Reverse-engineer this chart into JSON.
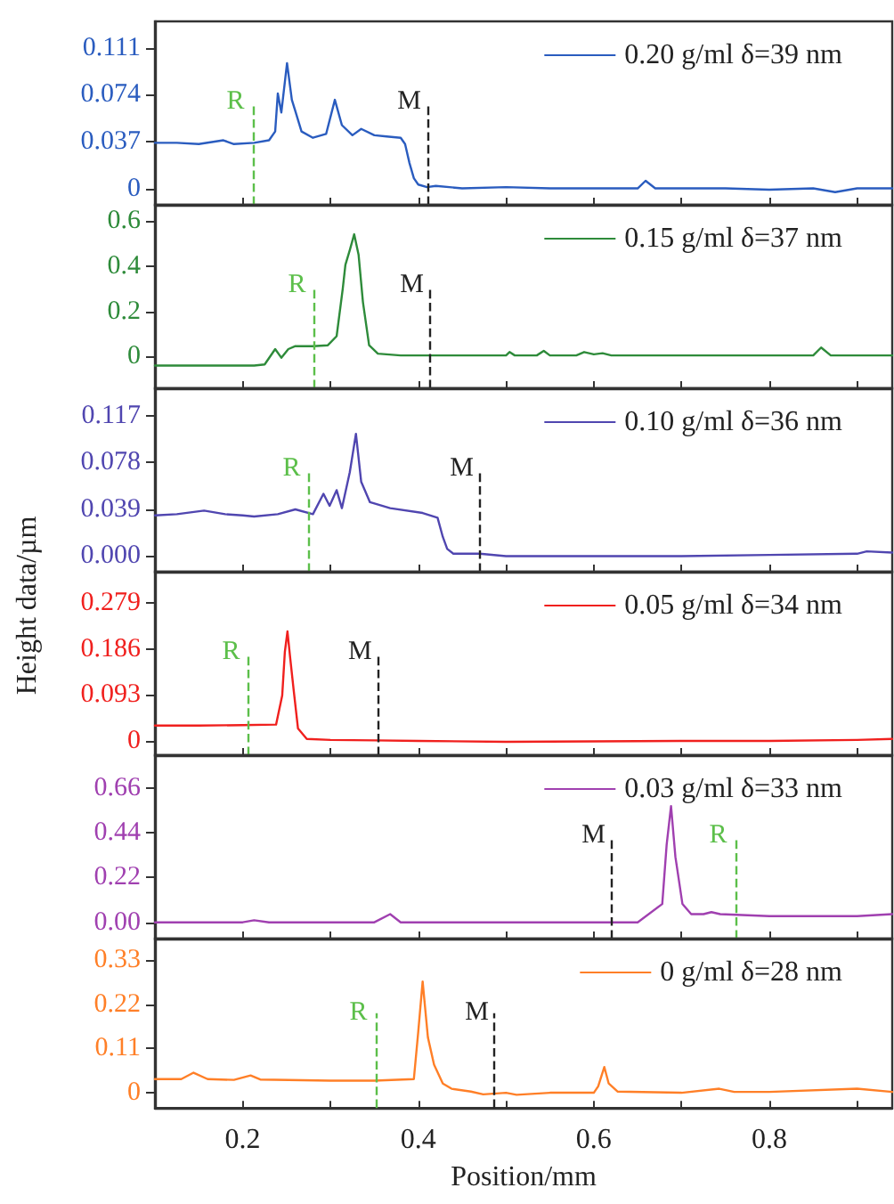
{
  "chart_data": [
    {
      "type": "line",
      "xlim": [
        0.1,
        0.94
      ],
      "xticks": [
        {
          "value": 0.2,
          "label": null
        },
        {
          "value": 0.3,
          "label": null
        },
        {
          "value": 0.4,
          "label": null
        },
        {
          "value": 0.5,
          "label": null
        },
        {
          "value": 0.6,
          "label": null
        },
        {
          "value": 0.7,
          "label": null
        },
        {
          "value": 0.8,
          "label": null
        },
        {
          "value": 0.9,
          "label": null
        }
      ],
      "ylim": [
        -0.013,
        0.132
      ],
      "yticks": [
        0,
        0.037,
        0.074,
        0.111
      ],
      "tick_labels": "y",
      "legend": "top right",
      "marker": "none",
      "series": [
        {
          "name": "0.20 g/ml δ=39 nm",
          "color": "#2a5cbf",
          "x": [
            0.1,
            0.125,
            0.15,
            0.178,
            0.19,
            0.213,
            0.23,
            0.237,
            0.24,
            0.244,
            0.2505,
            0.256,
            0.26,
            0.267,
            0.28,
            0.295,
            0.305,
            0.313,
            0.325,
            0.335,
            0.35,
            0.364,
            0.38,
            0.385,
            0.39,
            0.395,
            0.4,
            0.41,
            0.42,
            0.45,
            0.5,
            0.55,
            0.6,
            0.65,
            0.659,
            0.67,
            0.7,
            0.75,
            0.8,
            0.85,
            0.875,
            0.9,
            0.94
          ],
          "values": [
            0.036,
            0.036,
            0.035,
            0.038,
            0.035,
            0.036,
            0.038,
            0.045,
            0.075,
            0.06,
            0.099,
            0.07,
            0.061,
            0.045,
            0.04,
            0.043,
            0.07,
            0.05,
            0.042,
            0.047,
            0.042,
            0.041,
            0.04,
            0.035,
            0.02,
            0.008,
            0.003,
            0.001,
            0.002,
            0.0,
            0.001,
            0.0,
            0.0,
            0.0,
            0.006,
            0.0,
            0.0,
            0.0,
            -0.001,
            0.0,
            -0.003,
            0.0,
            0.0
          ]
        }
      ],
      "ref_lines": [
        {
          "axis": "x",
          "value": 0.212,
          "label": "R",
          "color": "#5cbf4a",
          "line_style": "dashed"
        },
        {
          "axis": "x",
          "value": 0.41,
          "label": "M",
          "color": "#222222",
          "line_style": "dashed"
        }
      ]
    },
    {
      "type": "line",
      "xlim": [
        0.1,
        0.94
      ],
      "xticks": [
        {
          "value": 0.2,
          "label": null
        },
        {
          "value": 0.3,
          "label": null
        },
        {
          "value": 0.4,
          "label": null
        },
        {
          "value": 0.5,
          "label": null
        },
        {
          "value": 0.6,
          "label": null
        },
        {
          "value": 0.7,
          "label": null
        },
        {
          "value": 0.8,
          "label": null
        },
        {
          "value": 0.9,
          "label": null
        }
      ],
      "ylim": [
        -0.14,
        0.67
      ],
      "yticks": [
        0,
        0.2,
        0.4,
        0.6
      ],
      "tick_labels": "y",
      "legend": "top right",
      "marker": "none",
      "series": [
        {
          "name": "0.15 g/ml δ=37 nm",
          "color": "#2e8b3a",
          "x": [
            0.1,
            0.15,
            0.2,
            0.213,
            0.225,
            0.237,
            0.244,
            0.252,
            0.26,
            0.28,
            0.297,
            0.307,
            0.314,
            0.317,
            0.322,
            0.327,
            0.332,
            0.337,
            0.344,
            0.354,
            0.38,
            0.45,
            0.5,
            0.504,
            0.51,
            0.535,
            0.543,
            0.55,
            0.58,
            0.589,
            0.6,
            0.61,
            0.62,
            0.7,
            0.8,
            0.85,
            0.859,
            0.87,
            0.94
          ],
          "values": [
            -0.04,
            -0.04,
            -0.04,
            -0.04,
            -0.035,
            0.033,
            -0.005,
            0.033,
            0.046,
            0.046,
            0.05,
            0.09,
            0.3,
            0.405,
            0.47,
            0.54,
            0.45,
            0.24,
            0.05,
            0.013,
            0.005,
            0.005,
            0.005,
            0.02,
            0.005,
            0.005,
            0.025,
            0.005,
            0.005,
            0.02,
            0.01,
            0.015,
            0.005,
            0.005,
            0.005,
            0.005,
            0.04,
            0.005,
            0.005
          ]
        }
      ],
      "ref_lines": [
        {
          "axis": "x",
          "value": 0.282,
          "label": "R",
          "color": "#5cbf4a",
          "line_style": "dashed"
        },
        {
          "axis": "x",
          "value": 0.413,
          "label": "M",
          "color": "#222222",
          "line_style": "dashed"
        }
      ]
    },
    {
      "type": "line",
      "xlim": [
        0.1,
        0.94
      ],
      "xticks": [
        {
          "value": 0.2,
          "label": null
        },
        {
          "value": 0.3,
          "label": null
        },
        {
          "value": 0.4,
          "label": null
        },
        {
          "value": 0.5,
          "label": null
        },
        {
          "value": 0.6,
          "label": null
        },
        {
          "value": 0.7,
          "label": null
        },
        {
          "value": 0.8,
          "label": null
        },
        {
          "value": 0.9,
          "label": null
        }
      ],
      "ylim": [
        -0.013,
        0.14
      ],
      "yticks": [
        {
          "value": 0,
          "label": "0.000"
        },
        0.039,
        0.078,
        0.117
      ],
      "tick_labels": "y",
      "legend": "top right",
      "marker": "none",
      "series": [
        {
          "name": "0.10 g/ml δ=36 nm",
          "color": "#5046b0",
          "x": [
            0.1,
            0.125,
            0.156,
            0.18,
            0.2,
            0.213,
            0.24,
            0.26,
            0.28,
            0.292,
            0.299,
            0.307,
            0.313,
            0.322,
            0.329,
            0.335,
            0.345,
            0.368,
            0.405,
            0.422,
            0.428,
            0.433,
            0.44,
            0.47,
            0.5,
            0.55,
            0.6,
            0.7,
            0.8,
            0.9,
            0.911,
            0.94
          ],
          "values": [
            0.034,
            0.035,
            0.038,
            0.035,
            0.034,
            0.033,
            0.035,
            0.039,
            0.035,
            0.052,
            0.042,
            0.055,
            0.04,
            0.07,
            0.102,
            0.062,
            0.045,
            0.04,
            0.036,
            0.032,
            0.016,
            0.006,
            0.002,
            0.002,
            0.0,
            0.0,
            0.0,
            0.0,
            0.001,
            0.002,
            0.004,
            0.003
          ]
        }
      ],
      "ref_lines": [
        {
          "axis": "x",
          "value": 0.276,
          "label": "R",
          "color": "#5cbf4a",
          "line_style": "dashed"
        },
        {
          "axis": "x",
          "value": 0.47,
          "label": "M",
          "color": "#222222",
          "line_style": "dashed"
        }
      ]
    },
    {
      "type": "line",
      "ylabel": "Height data/µm",
      "xlim": [
        0.1,
        0.94
      ],
      "xticks": [
        {
          "value": 0.2,
          "label": null
        },
        {
          "value": 0.3,
          "label": null
        },
        {
          "value": 0.4,
          "label": null
        },
        {
          "value": 0.5,
          "label": null
        },
        {
          "value": 0.6,
          "label": null
        },
        {
          "value": 0.7,
          "label": null
        },
        {
          "value": 0.8,
          "label": null
        },
        {
          "value": 0.9,
          "label": null
        }
      ],
      "ylim": [
        -0.029,
        0.343
      ],
      "yticks": [
        0,
        0.093,
        0.186,
        0.279
      ],
      "tick_labels": "y",
      "legend": "top right",
      "marker": "none",
      "series": [
        {
          "name": "0.05 g/ml δ=34 nm",
          "color": "#f0201e",
          "x": [
            0.1,
            0.15,
            0.2,
            0.238,
            0.245,
            0.248,
            0.251,
            0.254,
            0.258,
            0.263,
            0.273,
            0.3,
            0.35,
            0.4,
            0.5,
            0.6,
            0.7,
            0.8,
            0.9,
            0.94
          ],
          "values": [
            0.031,
            0.031,
            0.032,
            0.033,
            0.092,
            0.18,
            0.222,
            0.17,
            0.104,
            0.025,
            0.004,
            0.002,
            0.001,
            0.0,
            -0.002,
            -0.001,
            0.0,
            0.0,
            0.002,
            0.004
          ]
        }
      ],
      "ref_lines": [
        {
          "axis": "x",
          "value": 0.207,
          "label": "R",
          "color": "#5cbf4a",
          "line_style": "dashed"
        },
        {
          "axis": "x",
          "value": 0.354,
          "label": "M",
          "color": "#222222",
          "line_style": "dashed"
        }
      ]
    },
    {
      "type": "line",
      "xlim": [
        0.1,
        0.94
      ],
      "xticks": [
        {
          "value": 0.2,
          "label": null
        },
        {
          "value": 0.3,
          "label": null
        },
        {
          "value": 0.4,
          "label": null
        },
        {
          "value": 0.5,
          "label": null
        },
        {
          "value": 0.6,
          "label": null
        },
        {
          "value": 0.7,
          "label": null
        },
        {
          "value": 0.8,
          "label": null
        },
        {
          "value": 0.9,
          "label": null
        }
      ],
      "ylim": [
        -0.08,
        0.82
      ],
      "yticks": [
        {
          "value": 0,
          "label": "0.00"
        },
        0.22,
        0.44,
        0.66
      ],
      "tick_labels": "y",
      "legend": "top right",
      "marker": "none",
      "series": [
        {
          "name": "0.03 g/ml δ=33 nm",
          "color": "#a040b0",
          "x": [
            0.1,
            0.15,
            0.2,
            0.213,
            0.23,
            0.3,
            0.35,
            0.368,
            0.38,
            0.4,
            0.5,
            0.6,
            0.65,
            0.678,
            0.683,
            0.688,
            0.693,
            0.701,
            0.711,
            0.725,
            0.734,
            0.744,
            0.8,
            0.9,
            0.94
          ],
          "values": [
            0.0,
            0.0,
            0.0,
            0.01,
            0.0,
            0.0,
            0.0,
            0.04,
            0.0,
            0.0,
            0.0,
            0.0,
            0.0,
            0.09,
            0.38,
            0.57,
            0.32,
            0.09,
            0.04,
            0.04,
            0.05,
            0.04,
            0.03,
            0.03,
            0.04
          ]
        }
      ],
      "ref_lines": [
        {
          "axis": "x",
          "value": 0.62,
          "label": "M",
          "color": "#222222",
          "line_style": "dashed"
        },
        {
          "axis": "x",
          "value": 0.762,
          "label": "R",
          "color": "#5cbf4a",
          "line_style": "dashed"
        }
      ]
    },
    {
      "type": "line",
      "xlabel": "Position/mm",
      "xlim": [
        0.1,
        0.94
      ],
      "xticks": [
        0.2,
        {
          "value": 0.3,
          "label": null
        },
        0.4,
        {
          "value": 0.5,
          "label": null
        },
        0.6,
        {
          "value": 0.7,
          "label": null
        },
        0.8,
        {
          "value": 0.9,
          "label": null
        }
      ],
      "ylim": [
        -0.038,
        0.384
      ],
      "yticks": [
        0,
        0.11,
        0.22,
        0.33
      ],
      "legend": "top right",
      "marker": "none",
      "series": [
        {
          "name": "0 g/ml δ=28 nm",
          "color": "#ff7f27",
          "x": [
            0.1,
            0.13,
            0.144,
            0.16,
            0.19,
            0.209,
            0.22,
            0.3,
            0.35,
            0.395,
            0.4,
            0.405,
            0.411,
            0.418,
            0.428,
            0.438,
            0.46,
            0.474,
            0.5,
            0.512,
            0.55,
            0.6,
            0.605,
            0.612,
            0.617,
            0.627,
            0.7,
            0.743,
            0.76,
            0.8,
            0.9,
            0.94
          ],
          "values": [
            0.034,
            0.034,
            0.05,
            0.034,
            0.032,
            0.043,
            0.033,
            0.03,
            0.03,
            0.034,
            0.152,
            0.277,
            0.138,
            0.07,
            0.023,
            0.01,
            0.003,
            -0.004,
            0.0,
            -0.005,
            0.0,
            0.0,
            0.016,
            0.064,
            0.023,
            0.003,
            0.0,
            0.01,
            0.002,
            0.002,
            0.01,
            0.002
          ]
        }
      ],
      "ref_lines": [
        {
          "axis": "x",
          "value": 0.352,
          "label": "R",
          "color": "#5cbf4a",
          "line_style": "dashed"
        },
        {
          "axis": "x",
          "value": 0.487,
          "label": "M",
          "color": "#222222",
          "line_style": "dashed"
        }
      ]
    }
  ]
}
